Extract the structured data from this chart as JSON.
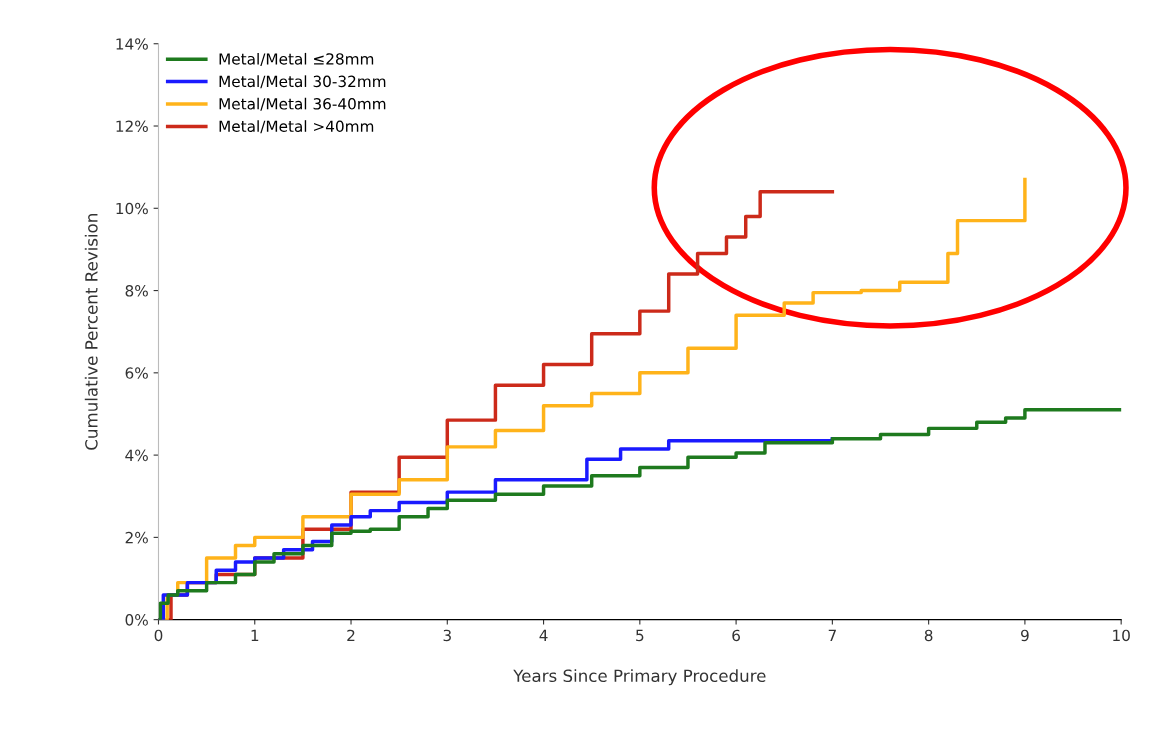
{
  "chart_data": {
    "type": "step",
    "xlabel": "Years Since Primary Procedure",
    "ylabel": "Cumulative Percent Revision",
    "xlim": [
      0,
      10
    ],
    "xticks": [
      0,
      1,
      2,
      3,
      4,
      5,
      6,
      7,
      8,
      9,
      10
    ],
    "ylim": [
      0,
      14
    ],
    "yticks": [
      {
        "value": 0,
        "label": "0%"
      },
      {
        "value": 2,
        "label": "2%"
      },
      {
        "value": 4,
        "label": "4%"
      },
      {
        "value": 6,
        "label": "6%"
      },
      {
        "value": 8,
        "label": "8%"
      },
      {
        "value": 10,
        "label": "10%"
      },
      {
        "value": 12,
        "label": "12%"
      },
      {
        "value": 14,
        "label": "14%"
      }
    ],
    "grid": false,
    "legend": "top left",
    "series": [
      {
        "name": "Metal/Metal ≤28mm",
        "color": "#1e7a1e",
        "x": [
          0,
          0.02,
          0.1,
          0.2,
          0.5,
          0.8,
          1,
          1.2,
          1.5,
          1.8,
          2,
          2.2,
          2.5,
          2.8,
          3,
          3.5,
          4,
          4.5,
          5,
          5.5,
          6,
          6.3,
          7,
          7.5,
          8,
          8.5,
          8.8,
          9,
          10
        ],
        "values": [
          0,
          0.4,
          0.6,
          0.7,
          0.9,
          1.1,
          1.4,
          1.6,
          1.8,
          2.1,
          2.15,
          2.2,
          2.5,
          2.7,
          2.9,
          3.05,
          3.25,
          3.5,
          3.7,
          3.95,
          4.05,
          4.3,
          4.4,
          4.5,
          4.65,
          4.8,
          4.9,
          5.1,
          5.1
        ]
      },
      {
        "name": "Metal/Metal 30-32mm",
        "color": "#1a1aff",
        "x": [
          0,
          0.05,
          0.3,
          0.6,
          0.8,
          1,
          1.3,
          1.6,
          1.8,
          2,
          2.2,
          2.5,
          3,
          3.5,
          4,
          4.35,
          4.45,
          4.8,
          5.3,
          6,
          7
        ],
        "values": [
          0,
          0.6,
          0.9,
          1.2,
          1.4,
          1.5,
          1.7,
          1.9,
          2.3,
          2.5,
          2.65,
          2.85,
          3.1,
          3.4,
          3.4,
          3.4,
          3.9,
          4.15,
          4.35,
          4.35,
          4.4
        ]
      },
      {
        "name": "Metal/Metal 36-40mm",
        "color": "#ffb31a",
        "x": [
          0,
          0.09,
          0.2,
          0.5,
          0.8,
          1,
          1.5,
          2,
          2.5,
          3,
          3.5,
          4,
          4.5,
          5,
          5.5,
          6,
          6.5,
          6.8,
          7.3,
          7.7,
          8.15,
          8.2,
          8.3,
          9,
          9
        ],
        "values": [
          0,
          0.6,
          0.9,
          1.5,
          1.8,
          2.0,
          2.5,
          3.05,
          3.4,
          4.2,
          4.6,
          5.2,
          5.5,
          6.0,
          6.6,
          7.4,
          7.7,
          7.95,
          8.0,
          8.2,
          8.2,
          8.9,
          9.7,
          9.7,
          10.7
        ]
      },
      {
        "name": "Metal/Metal >40mm",
        "color": "#cc2a1a",
        "x": [
          0,
          0.13,
          0.3,
          0.6,
          1,
          1.5,
          2,
          2.5,
          3,
          3.5,
          4,
          4.5,
          5,
          5.3,
          5.6,
          5.9,
          6.1,
          6.25,
          7
        ],
        "values": [
          0,
          0.6,
          0.9,
          1.1,
          1.5,
          2.2,
          3.1,
          3.95,
          4.85,
          5.7,
          6.2,
          6.95,
          7.5,
          8.4,
          8.9,
          9.3,
          9.8,
          10.4,
          10.4
        ]
      }
    ]
  }
}
